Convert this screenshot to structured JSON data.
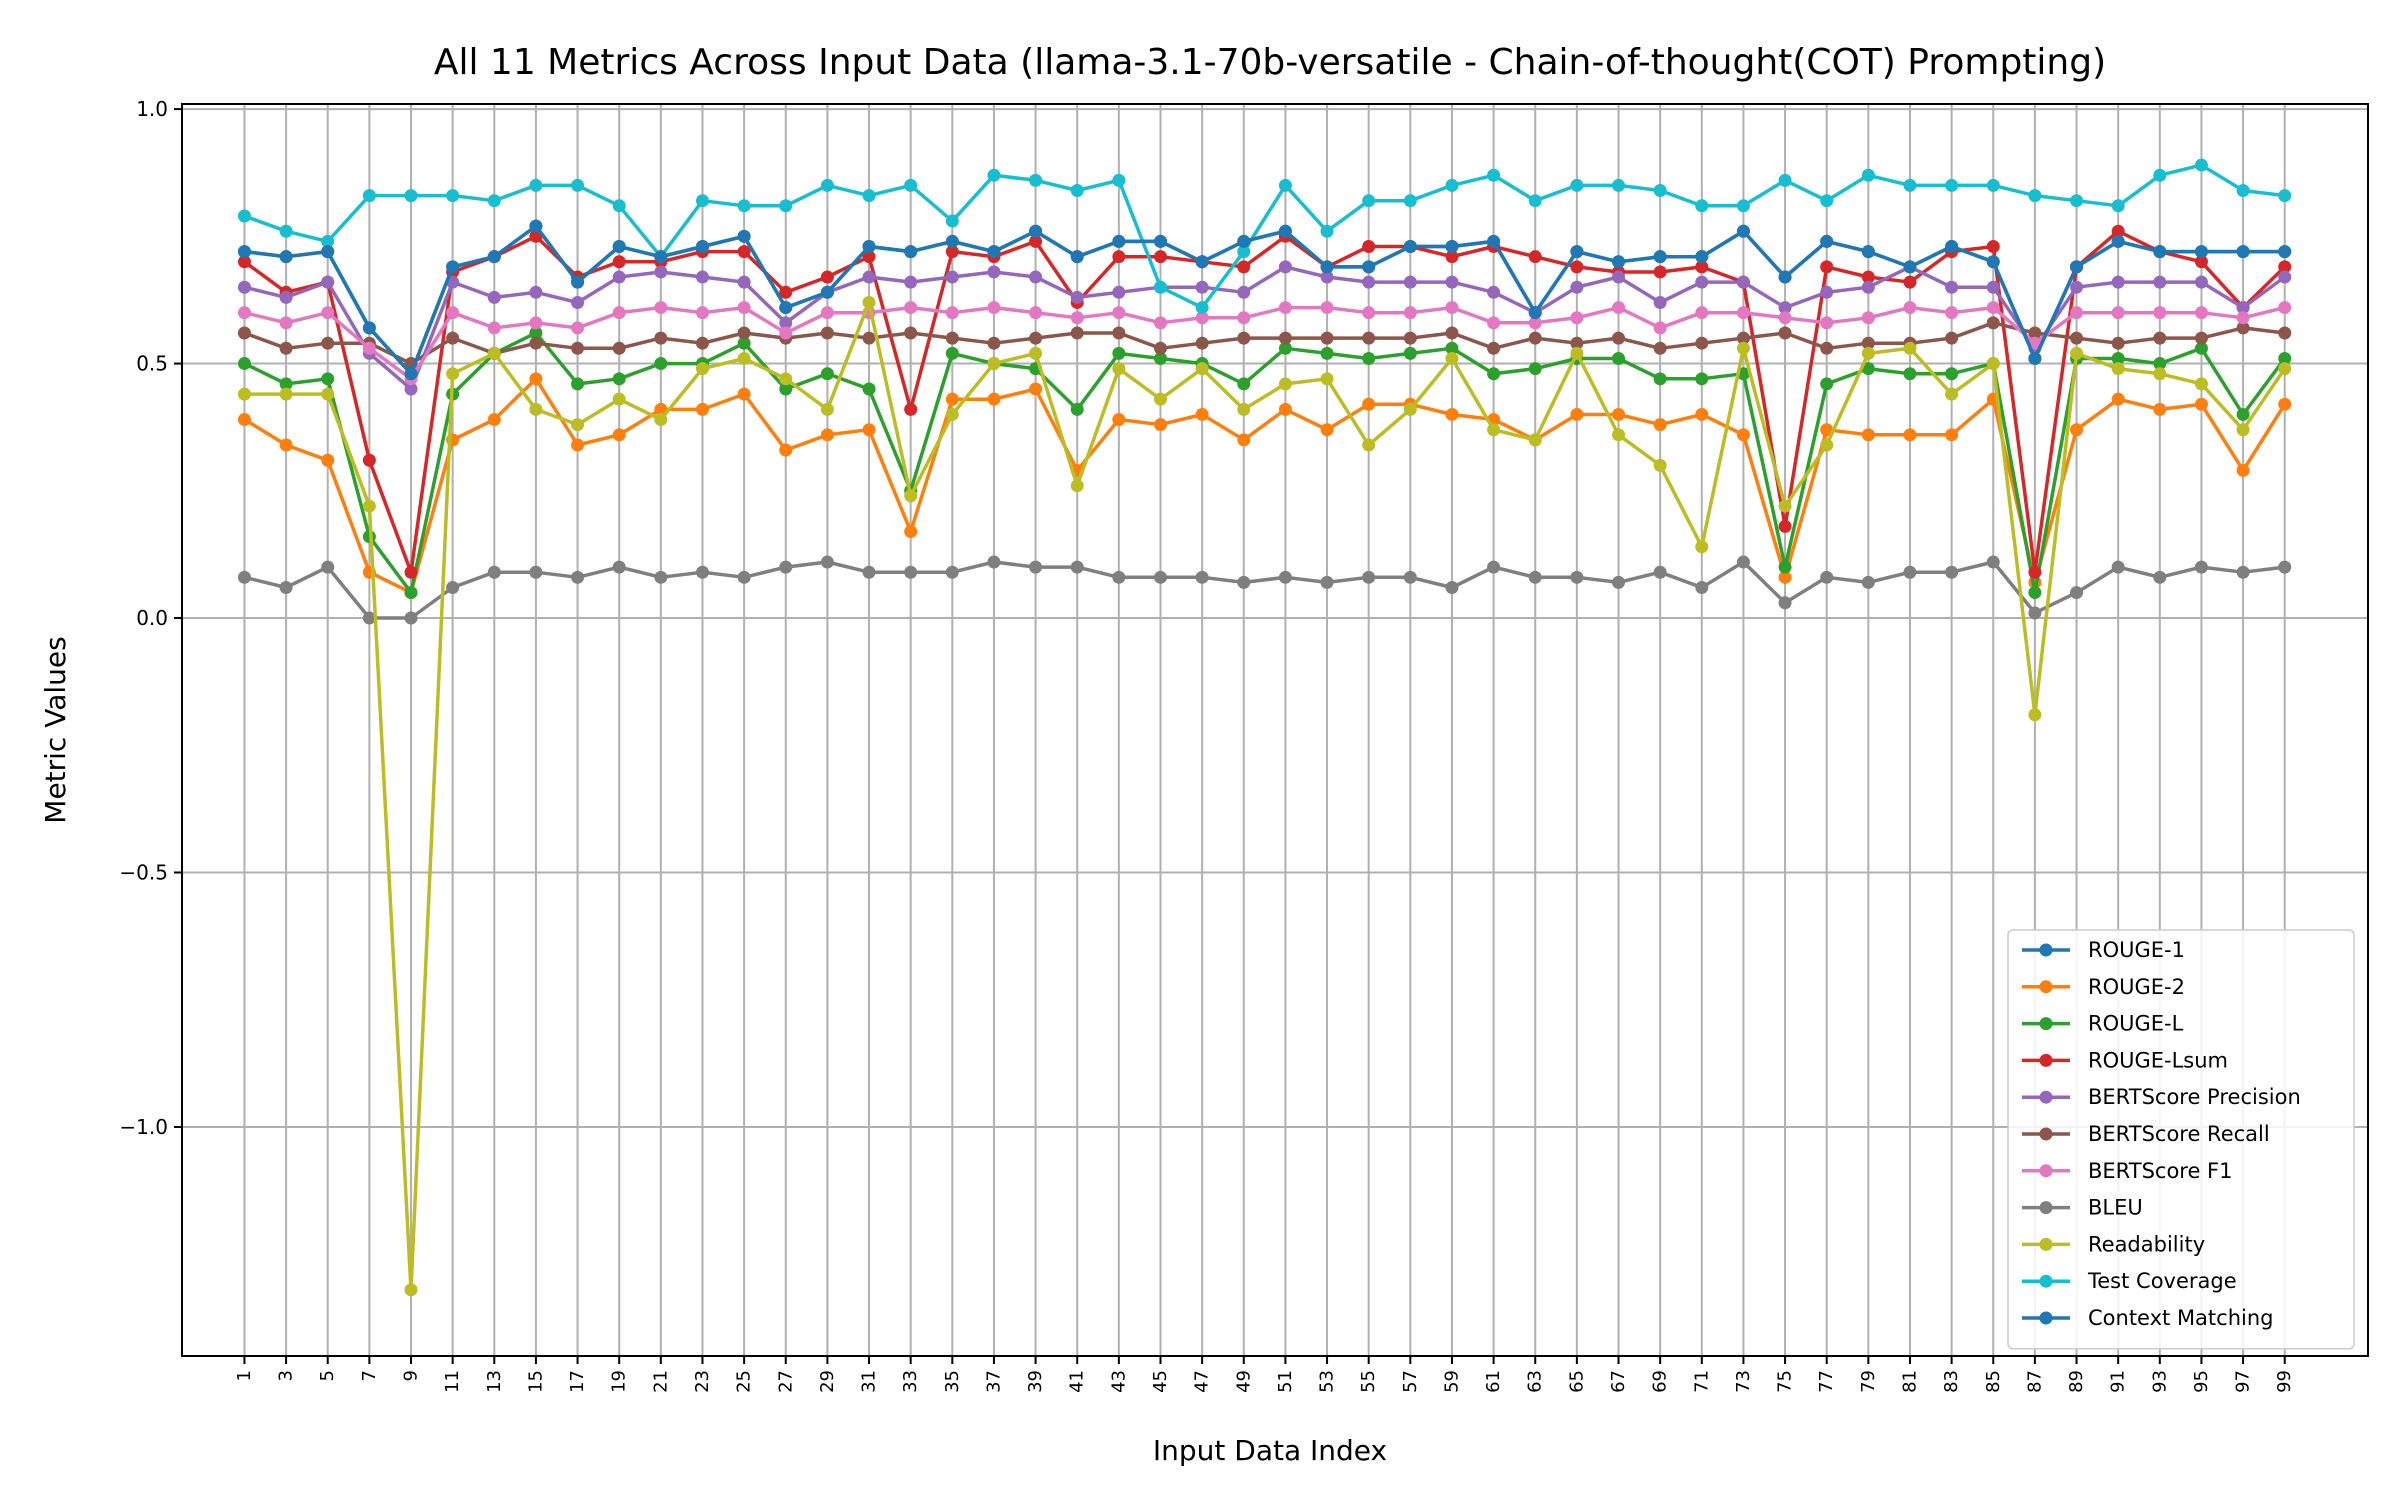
{
  "chart_data": {
    "type": "line",
    "title": "All 11 Metrics Across Input Data (llama-3.1-70b-versatile - Chain-of-thought(COT) Prompting)",
    "xlabel": "Input Data Index",
    "ylabel": "Metric Values",
    "x": [
      1,
      3,
      5,
      7,
      9,
      11,
      13,
      15,
      17,
      19,
      21,
      23,
      25,
      27,
      29,
      31,
      33,
      35,
      37,
      39,
      41,
      43,
      45,
      47,
      49,
      51,
      53,
      55,
      57,
      59,
      61,
      63,
      65,
      67,
      69,
      71,
      73,
      75,
      77,
      79,
      81,
      83,
      85,
      87,
      89,
      91,
      93,
      95,
      97,
      99
    ],
    "x_tick_labels": [
      "1",
      "3",
      "5",
      "7",
      "9",
      "11",
      "13",
      "15",
      "17",
      "19",
      "21",
      "23",
      "25",
      "27",
      "29",
      "31",
      "33",
      "35",
      "37",
      "39",
      "41",
      "43",
      "45",
      "47",
      "49",
      "51",
      "53",
      "55",
      "57",
      "59",
      "61",
      "63",
      "65",
      "67",
      "69",
      "71",
      "73",
      "75",
      "77",
      "79",
      "81",
      "83",
      "85",
      "87",
      "89",
      "91",
      "93",
      "95",
      "97",
      "99"
    ],
    "xlim": [
      -2,
      103
    ],
    "ylim": [
      -1.45,
      1.01
    ],
    "y_ticks": [
      1.0,
      0.5,
      0.0,
      -0.5,
      -1.0
    ],
    "y_tick_labels": [
      "1.0",
      "0.5",
      "0.0",
      "−0.5",
      "−1.0"
    ],
    "grid": true,
    "legend_position": "lower-right",
    "series": [
      {
        "name": "ROUGE-1",
        "color": "#1f77b4",
        "values": [
          0.72,
          0.71,
          0.72,
          0.57,
          0.48,
          0.69,
          0.71,
          0.77,
          0.66,
          0.73,
          0.71,
          0.73,
          0.75,
          0.61,
          0.64,
          0.73,
          0.72,
          0.74,
          0.72,
          0.76,
          0.71,
          0.74,
          0.74,
          0.7,
          0.74,
          0.76,
          0.69,
          0.69,
          0.73,
          0.73,
          0.74,
          0.6,
          0.72,
          0.7,
          0.71,
          0.71,
          0.76,
          0.67,
          0.74,
          0.72,
          0.69,
          0.73,
          0.7,
          0.51,
          0.69,
          0.74,
          0.72,
          0.72,
          0.72,
          0.72
        ]
      },
      {
        "name": "ROUGE-2",
        "color": "#ff7f0e",
        "values": [
          0.39,
          0.34,
          0.31,
          0.09,
          0.05,
          0.35,
          0.39,
          0.47,
          0.34,
          0.36,
          0.41,
          0.41,
          0.44,
          0.33,
          0.36,
          0.37,
          0.17,
          0.43,
          0.43,
          0.45,
          0.29,
          0.39,
          0.38,
          0.4,
          0.35,
          0.41,
          0.37,
          0.42,
          0.42,
          0.4,
          0.39,
          0.35,
          0.4,
          0.4,
          0.38,
          0.4,
          0.36,
          0.08,
          0.37,
          0.36,
          0.36,
          0.36,
          0.43,
          0.07,
          0.37,
          0.43,
          0.41,
          0.42,
          0.29,
          0.42
        ]
      },
      {
        "name": "ROUGE-L",
        "color": "#2ca02c",
        "values": [
          0.5,
          0.46,
          0.47,
          0.16,
          0.05,
          0.44,
          0.52,
          0.56,
          0.46,
          0.47,
          0.5,
          0.5,
          0.54,
          0.45,
          0.48,
          0.45,
          0.25,
          0.52,
          0.5,
          0.49,
          0.41,
          0.52,
          0.51,
          0.5,
          0.46,
          0.53,
          0.52,
          0.51,
          0.52,
          0.53,
          0.48,
          0.49,
          0.51,
          0.51,
          0.47,
          0.47,
          0.48,
          0.1,
          0.46,
          0.49,
          0.48,
          0.48,
          0.5,
          0.05,
          0.51,
          0.51,
          0.5,
          0.53,
          0.4,
          0.51
        ]
      },
      {
        "name": "ROUGE-Lsum",
        "color": "#d62728",
        "values": [
          0.7,
          0.64,
          0.66,
          0.31,
          0.09,
          0.68,
          0.71,
          0.75,
          0.67,
          0.7,
          0.7,
          0.72,
          0.72,
          0.64,
          0.67,
          0.71,
          0.41,
          0.72,
          0.71,
          0.74,
          0.62,
          0.71,
          0.71,
          0.7,
          0.69,
          0.75,
          0.69,
          0.73,
          0.73,
          0.71,
          0.73,
          0.71,
          0.69,
          0.68,
          0.68,
          0.69,
          0.66,
          0.18,
          0.69,
          0.67,
          0.66,
          0.72,
          0.73,
          0.09,
          0.69,
          0.76,
          0.72,
          0.7,
          0.61,
          0.69
        ]
      },
      {
        "name": "BERTScore Precision",
        "color": "#9467bd",
        "values": [
          0.65,
          0.63,
          0.66,
          0.52,
          0.45,
          0.66,
          0.63,
          0.64,
          0.62,
          0.67,
          0.68,
          0.67,
          0.66,
          0.58,
          0.64,
          0.67,
          0.66,
          0.67,
          0.68,
          0.67,
          0.63,
          0.64,
          0.65,
          0.65,
          0.64,
          0.69,
          0.67,
          0.66,
          0.66,
          0.66,
          0.64,
          0.6,
          0.65,
          0.67,
          0.62,
          0.66,
          0.66,
          0.61,
          0.64,
          0.65,
          0.69,
          0.65,
          0.65,
          0.53,
          0.65,
          0.66,
          0.66,
          0.66,
          0.61,
          0.67
        ]
      },
      {
        "name": "BERTScore Recall",
        "color": "#8c564b",
        "values": [
          0.56,
          0.53,
          0.54,
          0.54,
          0.5,
          0.55,
          0.52,
          0.54,
          0.53,
          0.53,
          0.55,
          0.54,
          0.56,
          0.55,
          0.56,
          0.55,
          0.56,
          0.55,
          0.54,
          0.55,
          0.56,
          0.56,
          0.53,
          0.54,
          0.55,
          0.55,
          0.55,
          0.55,
          0.55,
          0.56,
          0.53,
          0.55,
          0.54,
          0.55,
          0.53,
          0.54,
          0.55,
          0.56,
          0.53,
          0.54,
          0.54,
          0.55,
          0.58,
          0.56,
          0.55,
          0.54,
          0.55,
          0.55,
          0.57,
          0.56
        ]
      },
      {
        "name": "BERTScore F1",
        "color": "#e377c2",
        "values": [
          0.6,
          0.58,
          0.6,
          0.53,
          0.47,
          0.6,
          0.57,
          0.58,
          0.57,
          0.6,
          0.61,
          0.6,
          0.61,
          0.56,
          0.6,
          0.6,
          0.61,
          0.6,
          0.61,
          0.6,
          0.59,
          0.6,
          0.58,
          0.59,
          0.59,
          0.61,
          0.61,
          0.6,
          0.6,
          0.61,
          0.58,
          0.58,
          0.59,
          0.61,
          0.57,
          0.6,
          0.6,
          0.59,
          0.58,
          0.59,
          0.61,
          0.6,
          0.61,
          0.54,
          0.6,
          0.6,
          0.6,
          0.6,
          0.59,
          0.61
        ]
      },
      {
        "name": "BLEU",
        "color": "#7f7f7f",
        "values": [
          0.08,
          0.06,
          0.1,
          0.0,
          0.0,
          0.06,
          0.09,
          0.09,
          0.08,
          0.1,
          0.08,
          0.09,
          0.08,
          0.1,
          0.11,
          0.09,
          0.09,
          0.09,
          0.11,
          0.1,
          0.1,
          0.08,
          0.08,
          0.08,
          0.07,
          0.08,
          0.07,
          0.08,
          0.08,
          0.06,
          0.1,
          0.08,
          0.08,
          0.07,
          0.09,
          0.06,
          0.11,
          0.03,
          0.08,
          0.07,
          0.09,
          0.09,
          0.11,
          0.01,
          0.05,
          0.1,
          0.08,
          0.1,
          0.09,
          0.1
        ]
      },
      {
        "name": "Readability",
        "color": "#bcbd22",
        "values": [
          0.44,
          0.44,
          0.44,
          0.22,
          -1.32,
          0.48,
          0.52,
          0.41,
          0.38,
          0.43,
          0.39,
          0.49,
          0.51,
          0.47,
          0.41,
          0.62,
          0.24,
          0.4,
          0.5,
          0.52,
          0.26,
          0.49,
          0.43,
          0.49,
          0.41,
          0.46,
          0.47,
          0.34,
          0.41,
          0.51,
          0.37,
          0.35,
          0.52,
          0.36,
          0.3,
          0.14,
          0.53,
          0.22,
          0.34,
          0.52,
          0.53,
          0.44,
          0.5,
          -0.19,
          0.52,
          0.49,
          0.48,
          0.46,
          0.37,
          0.49
        ]
      },
      {
        "name": "Test Coverage",
        "color": "#17becf",
        "values": [
          0.79,
          0.76,
          0.74,
          0.83,
          0.83,
          0.83,
          0.82,
          0.85,
          0.85,
          0.81,
          0.71,
          0.82,
          0.81,
          0.81,
          0.85,
          0.83,
          0.85,
          0.78,
          0.87,
          0.86,
          0.84,
          0.86,
          0.65,
          0.61,
          0.72,
          0.85,
          0.76,
          0.82,
          0.82,
          0.85,
          0.87,
          0.82,
          0.85,
          0.85,
          0.84,
          0.81,
          0.81,
          0.86,
          0.82,
          0.87,
          0.85,
          0.85,
          0.85,
          0.83,
          0.82,
          0.81,
          0.87,
          0.89,
          0.84,
          0.83
        ]
      },
      {
        "name": "Context Matching",
        "color": "#1f77b4",
        "values": [
          0.72,
          0.71,
          0.72,
          0.57,
          0.48,
          0.69,
          0.71,
          0.77,
          0.66,
          0.73,
          0.71,
          0.73,
          0.75,
          0.61,
          0.64,
          0.73,
          0.72,
          0.74,
          0.72,
          0.76,
          0.71,
          0.74,
          0.74,
          0.7,
          0.74,
          0.76,
          0.69,
          0.69,
          0.73,
          0.73,
          0.74,
          0.6,
          0.72,
          0.7,
          0.71,
          0.71,
          0.76,
          0.67,
          0.74,
          0.72,
          0.69,
          0.73,
          0.7,
          0.51,
          0.69,
          0.74,
          0.72,
          0.72,
          0.72,
          0.72
        ]
      }
    ]
  }
}
